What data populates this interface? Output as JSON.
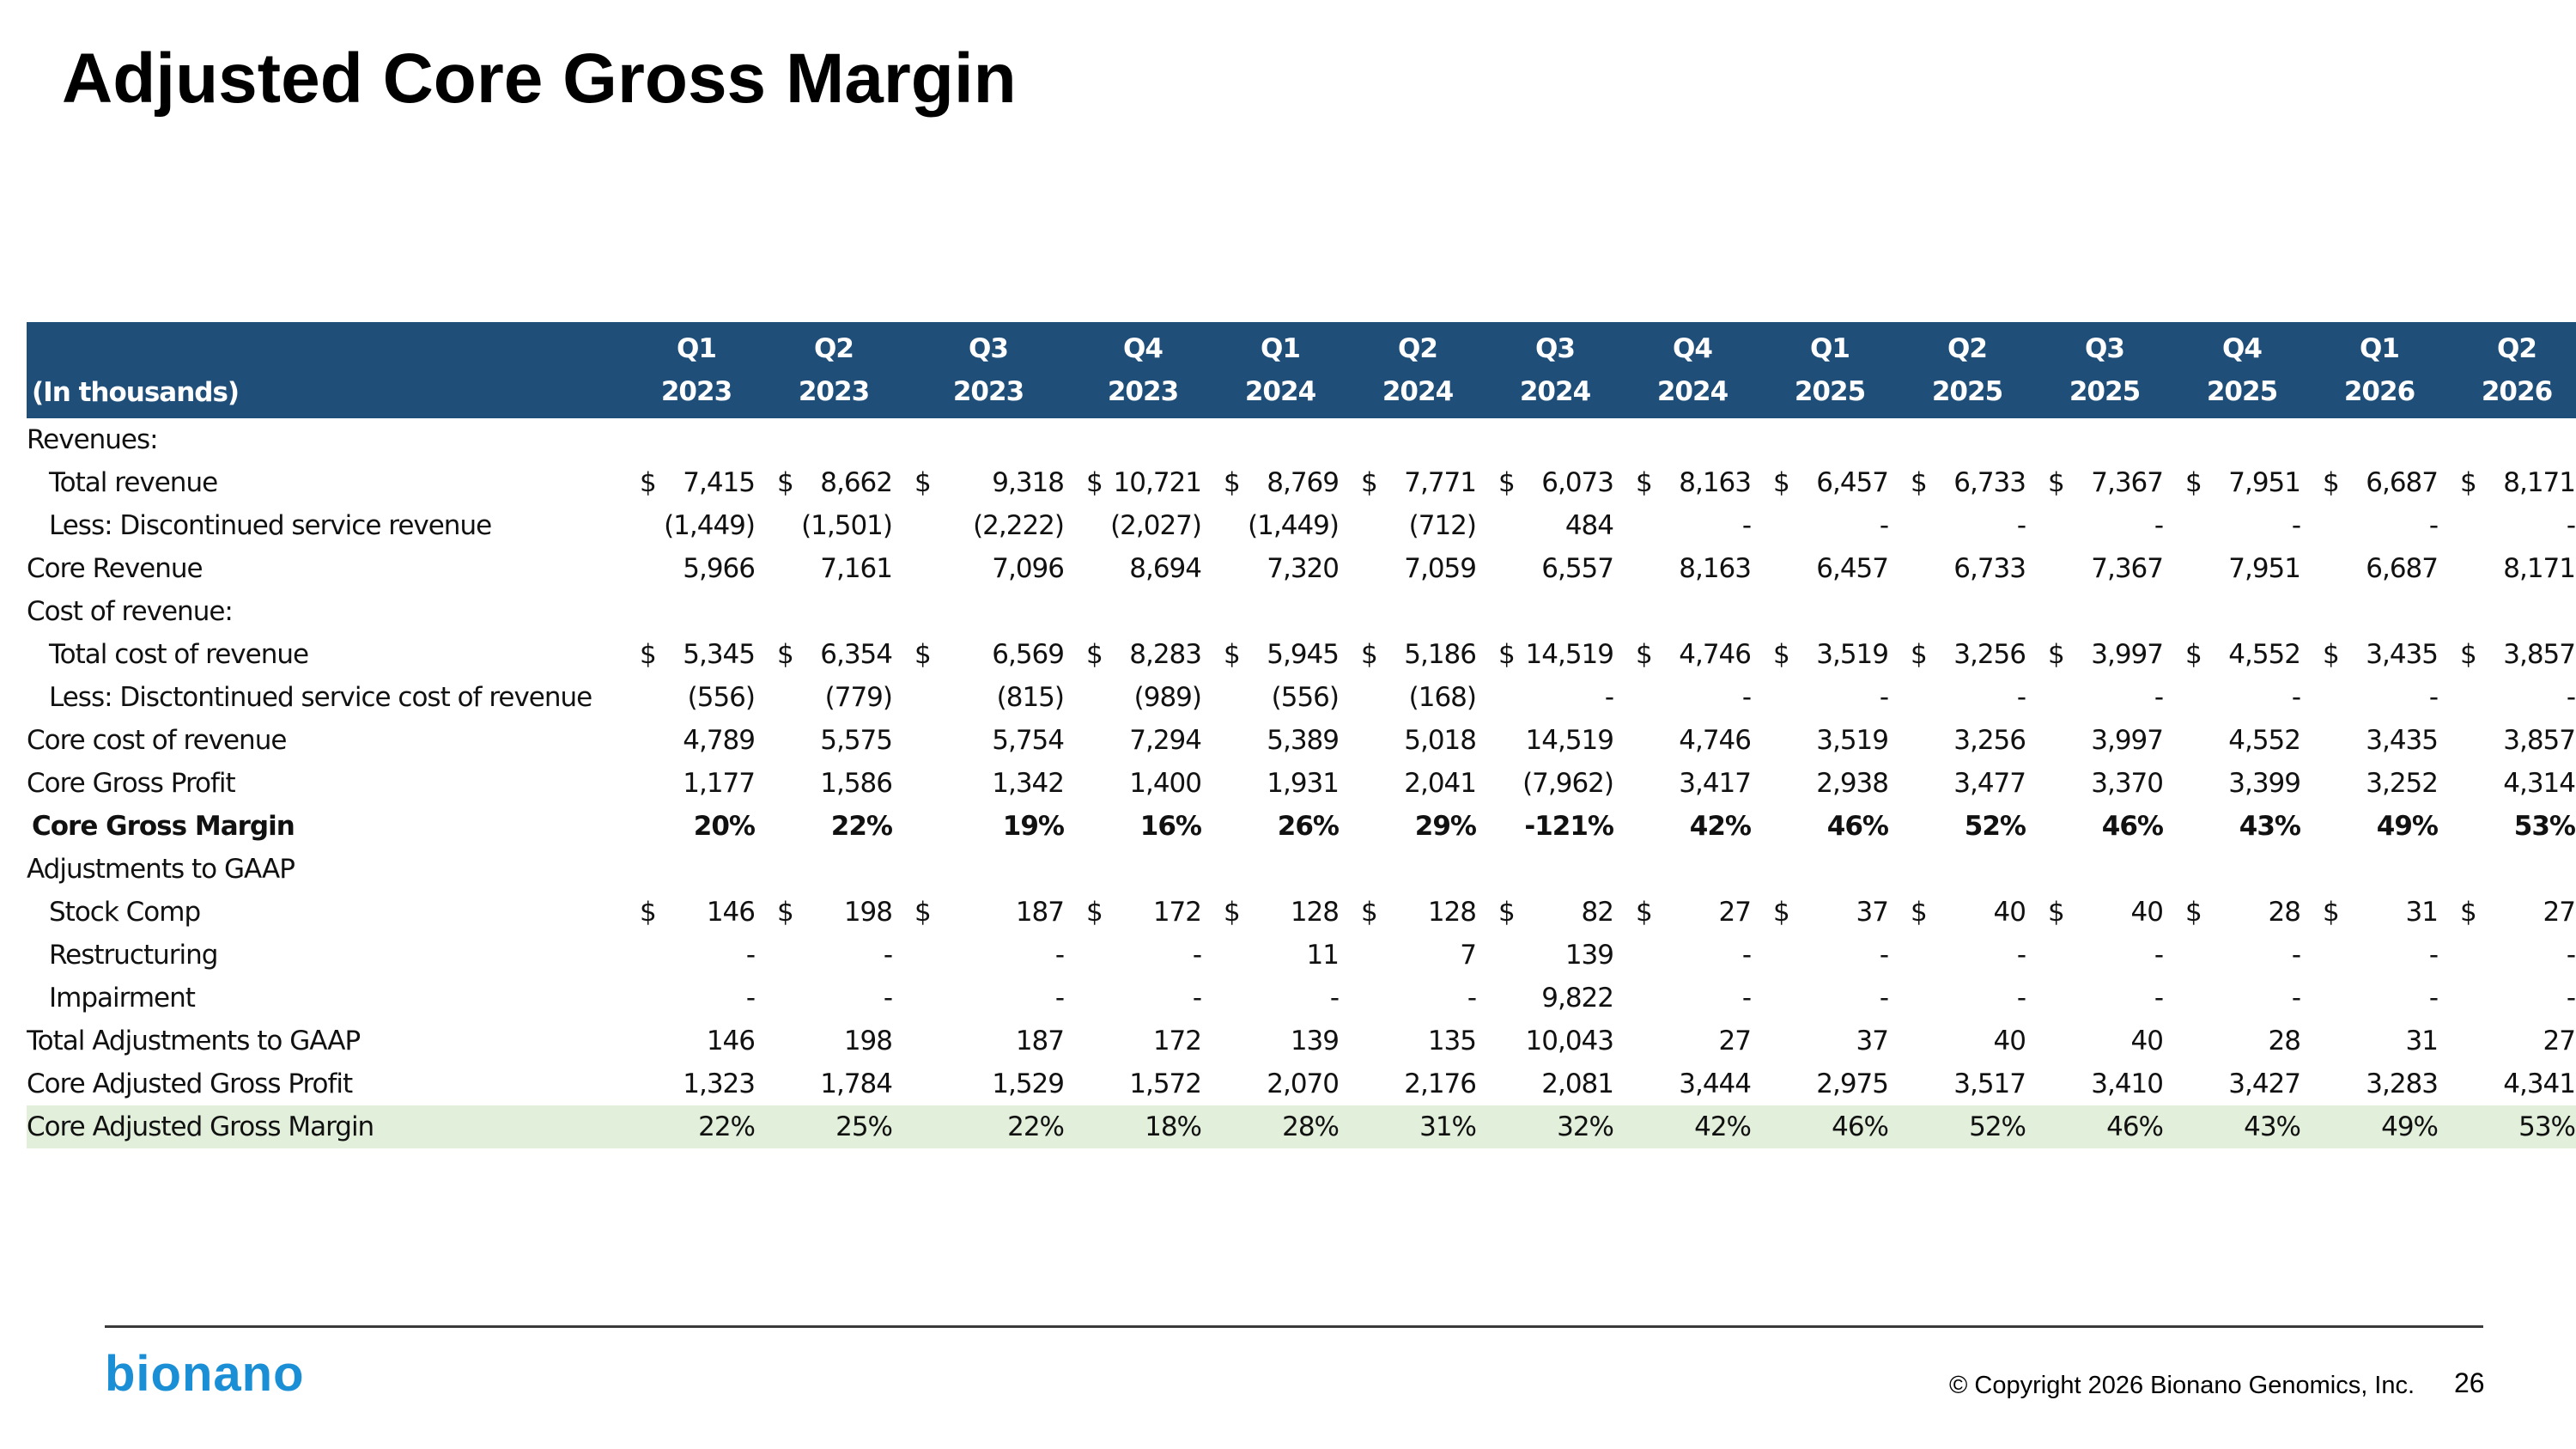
{
  "title": "Adjusted Core Gross Margin",
  "table": {
    "units_label": "(In thousands)",
    "periods": [
      {
        "q": "Q1",
        "y": "2023"
      },
      {
        "q": "Q2",
        "y": "2023"
      },
      {
        "q": "Q3",
        "y": "2023"
      },
      {
        "q": "Q4",
        "y": "2023"
      },
      {
        "q": "Q1",
        "y": "2024"
      },
      {
        "q": "Q2",
        "y": "2024"
      },
      {
        "q": "Q3",
        "y": "2024"
      },
      {
        "q": "Q4",
        "y": "2024"
      },
      {
        "q": "Q1",
        "y": "2025"
      },
      {
        "q": "Q2",
        "y": "2025"
      },
      {
        "q": "Q3",
        "y": "2025"
      },
      {
        "q": "Q4",
        "y": "2025"
      },
      {
        "q": "Q1",
        "y": "2026"
      },
      {
        "q": "Q2",
        "y": "2026"
      }
    ],
    "rows": [
      {
        "type": "section",
        "label": "Revenues:"
      },
      {
        "type": "item",
        "label": "Total revenue",
        "dollar": true,
        "values": [
          "7,415",
          "8,662",
          "9,318",
          "10,721",
          "8,769",
          "7,771",
          "6,073",
          "8,163",
          "6,457",
          "6,733",
          "7,367",
          "7,951",
          "6,687",
          "8,171"
        ]
      },
      {
        "type": "item",
        "label": "Less: Discontinued service revenue",
        "values": [
          "(1,449)",
          "(1,501)",
          "(2,222)",
          "(2,027)",
          "(1,449)",
          "(712)",
          "484",
          "-",
          "-",
          "-",
          "-",
          "-",
          "-",
          "-"
        ]
      },
      {
        "type": "total",
        "label": "Core Revenue",
        "values": [
          "5,966",
          "7,161",
          "7,096",
          "8,694",
          "7,320",
          "7,059",
          "6,557",
          "8,163",
          "6,457",
          "6,733",
          "7,367",
          "7,951",
          "6,687",
          "8,171"
        ]
      },
      {
        "type": "section",
        "label": "Cost of revenue:"
      },
      {
        "type": "item",
        "label": "Total cost of revenue",
        "dollar": true,
        "values": [
          "5,345",
          "6,354",
          "6,569",
          "8,283",
          "5,945",
          "5,186",
          "14,519",
          "4,746",
          "3,519",
          "3,256",
          "3,997",
          "4,552",
          "3,435",
          "3,857"
        ]
      },
      {
        "type": "item",
        "label": "Less: Disctontinued service cost of revenue",
        "values": [
          "(556)",
          "(779)",
          "(815)",
          "(989)",
          "(556)",
          "(168)",
          "-",
          "-",
          "-",
          "-",
          "-",
          "-",
          "-",
          "-"
        ]
      },
      {
        "type": "total",
        "label": "Core cost of revenue",
        "values": [
          "4,789",
          "5,575",
          "5,754",
          "7,294",
          "5,389",
          "5,018",
          "14,519",
          "4,746",
          "3,519",
          "3,256",
          "3,997",
          "4,552",
          "3,435",
          "3,857"
        ]
      },
      {
        "type": "total",
        "label": "Core Gross Profit",
        "values": [
          "1,177",
          "1,586",
          "1,342",
          "1,400",
          "1,931",
          "2,041",
          "(7,962)",
          "3,417",
          "2,938",
          "3,477",
          "3,370",
          "3,399",
          "3,252",
          "4,314"
        ]
      },
      {
        "type": "bold",
        "label": "Core Gross Margin",
        "values": [
          "20%",
          "22%",
          "19%",
          "16%",
          "26%",
          "29%",
          "-121%",
          "42%",
          "46%",
          "52%",
          "46%",
          "43%",
          "49%",
          "53%"
        ]
      },
      {
        "type": "section",
        "label": "Adjustments to GAAP"
      },
      {
        "type": "item",
        "label": "Stock Comp",
        "dollar": true,
        "values": [
          "146",
          "198",
          "187",
          "172",
          "128",
          "128",
          "82",
          "27",
          "37",
          "40",
          "40",
          "28",
          "31",
          "27"
        ]
      },
      {
        "type": "item",
        "label": "Restructuring",
        "values": [
          "-",
          "-",
          "-",
          "-",
          "11",
          "7",
          "139",
          "-",
          "-",
          "-",
          "-",
          "-",
          "-",
          "-"
        ]
      },
      {
        "type": "item",
        "label": "Impairment",
        "values": [
          "-",
          "-",
          "-",
          "-",
          "-",
          "-",
          "9,822",
          "-",
          "-",
          "-",
          "-",
          "-",
          "-",
          "-"
        ]
      },
      {
        "type": "total",
        "label": "Total Adjustments to GAAP",
        "values": [
          "146",
          "198",
          "187",
          "172",
          "139",
          "135",
          "10,043",
          "27",
          "37",
          "40",
          "40",
          "28",
          "31",
          "27"
        ]
      },
      {
        "type": "total",
        "label": "Core Adjusted Gross Profit",
        "values": [
          "1,323",
          "1,784",
          "1,529",
          "1,572",
          "2,070",
          "2,176",
          "2,081",
          "3,444",
          "2,975",
          "3,517",
          "3,410",
          "3,427",
          "3,283",
          "4,341"
        ]
      },
      {
        "type": "total",
        "highlight": true,
        "label": "Core Adjusted Gross Margin",
        "values": [
          "22%",
          "25%",
          "22%",
          "18%",
          "28%",
          "31%",
          "32%",
          "42%",
          "46%",
          "52%",
          "46%",
          "43%",
          "49%",
          "53%"
        ]
      }
    ]
  },
  "currency_symbol": "$",
  "footer": {
    "logo": "bionano",
    "copyright": "© Copyright 2026 Bionano Genomics, Inc.",
    "page_number": "26"
  },
  "colors": {
    "header_bg": "#1f4e79",
    "section_bg": "#deebf7",
    "highlight_bg": "#e2efda",
    "logo": "#1a8fd6"
  }
}
